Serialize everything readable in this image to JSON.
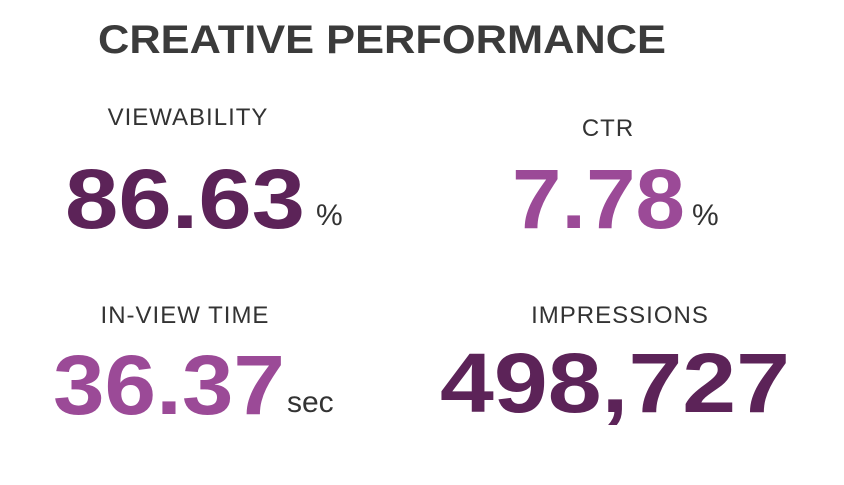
{
  "header": {
    "title": "CREATIVE PERFORMANCE"
  },
  "metrics": [
    {
      "label": "VIEWABILITY",
      "value": "86.63",
      "unit": "%",
      "color": "#5c2358"
    },
    {
      "label": "CTR",
      "value": "7.78",
      "unit": "%",
      "color": "#9b4a97"
    },
    {
      "label": "IN-VIEW TIME",
      "value": "36.37",
      "unit": "sec",
      "color": "#9b4a97"
    },
    {
      "label": "IMPRESSIONS",
      "value": "498,727",
      "color": "#5c2358"
    }
  ]
}
